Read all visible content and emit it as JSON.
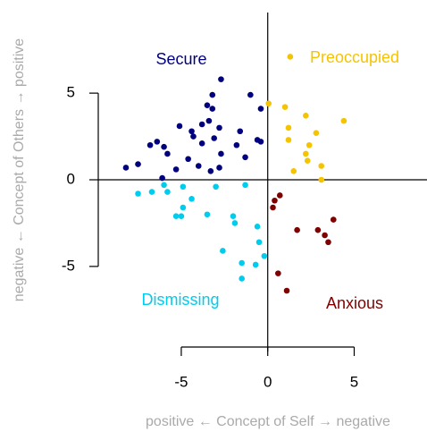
{
  "chart_data": {
    "type": "scatter",
    "x_label": "positive ←  Concept of Self  → negative",
    "y_label": "negative ←  Concept of Others → positive",
    "xlim": [
      -9.8,
      8.9
    ],
    "ylim": [
      -9.6,
      9.6
    ],
    "xticks": [
      -5,
      0,
      5
    ],
    "yticks": [
      -5,
      0,
      5
    ],
    "series": [
      {
        "name": "Secure",
        "color": "#00007f",
        "x": [
          -2.7,
          -3.2,
          -1.0,
          -3.5,
          -3.2,
          -0.4,
          -4.4,
          -5.1,
          -4.3,
          -3.8,
          -3.4,
          -3.1,
          -2.8,
          -1.6,
          -3.8,
          -2.7,
          -1.8,
          -0.6,
          -0.4,
          -6.4,
          -6.8,
          -6.0,
          -5.8,
          -4.6,
          -7.5,
          -8.2,
          -5.3,
          -6.1,
          -4.0,
          -3.3,
          -2.8,
          -1.3
        ],
        "y": [
          5.8,
          4.9,
          4.9,
          4.3,
          4.1,
          4.1,
          2.8,
          3.1,
          2.5,
          3.2,
          3.4,
          2.4,
          3.0,
          2.8,
          2.1,
          1.5,
          2.0,
          2.3,
          2.2,
          2.2,
          2.0,
          1.9,
          1.5,
          1.2,
          0.9,
          0.7,
          0.6,
          0.1,
          0.8,
          0.5,
          0.7,
          1.3
        ]
      },
      {
        "name": "Preoccupied",
        "color": "#f5c400",
        "x": [
          1.3,
          0.05,
          1.0,
          2.2,
          4.4,
          1.2,
          2.8,
          1.2,
          2.4,
          2.2,
          2.3,
          3.1,
          1.5,
          3.1
        ],
        "y": [
          7.1,
          4.4,
          4.2,
          3.7,
          3.4,
          3.0,
          2.7,
          2.3,
          2.0,
          1.5,
          1.1,
          0.8,
          0.5,
          0.0
        ]
      },
      {
        "name": "Dismissing",
        "color": "#00ccee",
        "x": [
          -7.5,
          -6.7,
          -6.0,
          -4.9,
          -5.8,
          -3.0,
          -1.3,
          -4.4,
          -4.9,
          -5.3,
          -5.0,
          -3.5,
          -2.0,
          -1.9,
          -0.6,
          -0.5,
          -2.6,
          -0.2,
          -0.7,
          -1.5,
          -1.5
        ],
        "y": [
          -0.8,
          -0.7,
          -0.3,
          -0.4,
          -0.7,
          -0.4,
          -0.3,
          -1.1,
          -1.6,
          -2.1,
          -2.1,
          -2.0,
          -2.1,
          -2.5,
          -2.7,
          -3.6,
          -4.1,
          -4.4,
          -4.9,
          -4.8,
          -5.7
        ]
      },
      {
        "name": "Anxious",
        "color": "#800000",
        "x": [
          0.7,
          0.4,
          0.3,
          3.8,
          1.7,
          2.9,
          3.3,
          3.5,
          0.6,
          1.1
        ],
        "y": [
          -0.9,
          -1.2,
          -1.6,
          -2.3,
          -2.9,
          -2.9,
          -3.2,
          -3.6,
          -5.4,
          -6.4
        ]
      }
    ]
  }
}
